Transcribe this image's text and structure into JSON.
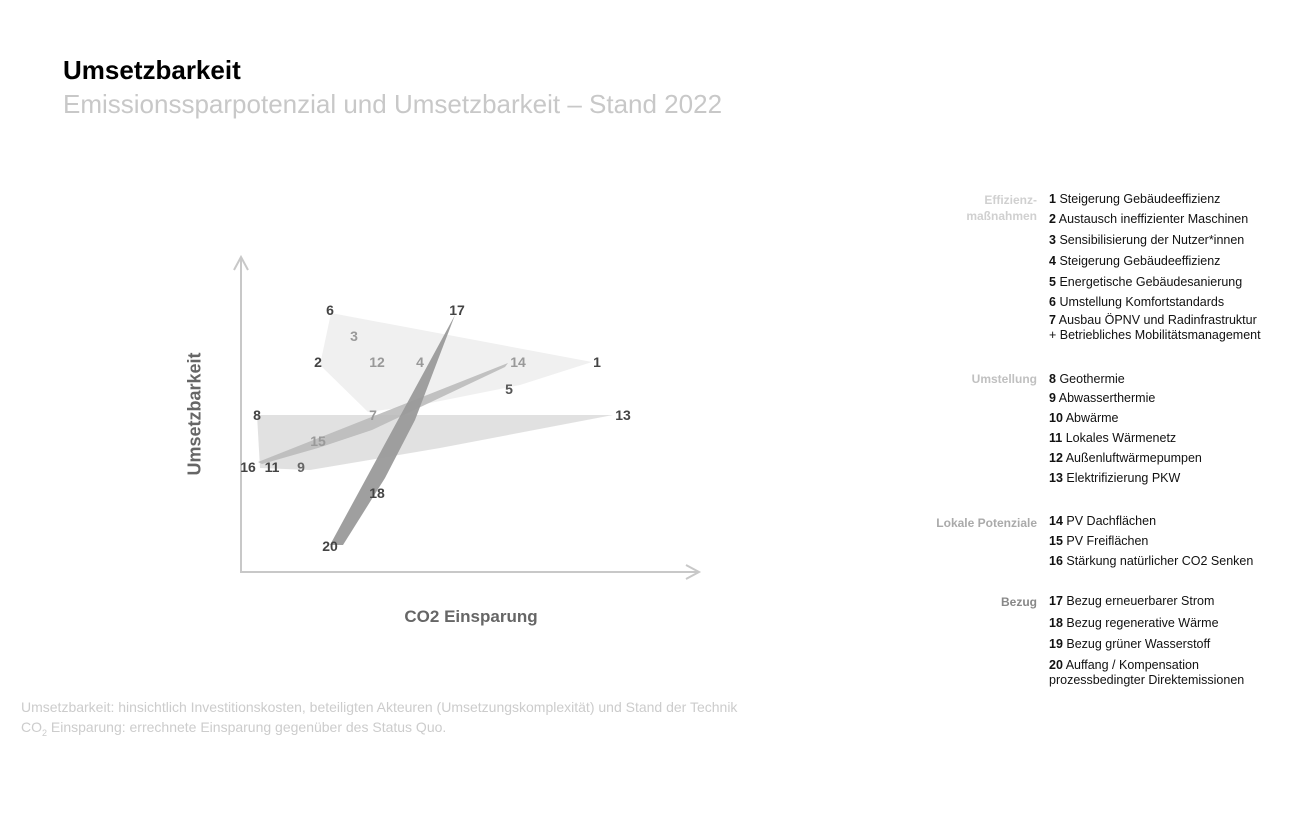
{
  "header": {
    "title": "Umsetzbarkeit",
    "subtitle": "Emissionssparpotenzial und Umsetzbarkeit – Stand 2022"
  },
  "diagram": {
    "y_axis_label": "Umsetzbarkeit",
    "x_axis_label": "CO2 Einsparung",
    "points": {
      "p1": "1",
      "p2": "2",
      "p3": "3",
      "p4": "4",
      "p5": "5",
      "p6": "6",
      "p7": "7",
      "p8": "8",
      "p9": "9",
      "p11": "11",
      "p12": "12",
      "p13": "13",
      "p14": "14",
      "p15": "15",
      "p16": "16",
      "p17": "17",
      "p18": "18",
      "p20": "20"
    },
    "colors": {
      "effizienz": "#f0f0f0",
      "umstellung": "#e0e0e0",
      "lokal": "#c4c4c4",
      "bezug": "#9a9a9a"
    }
  },
  "legend": {
    "groups": [
      "Effizienz-\nmaßnahmen",
      "Umstellung",
      "Lokale Potenziale",
      "Bezug"
    ],
    "items": [
      {
        "n": "1",
        "t": "Steigerung Gebäudeeffizienz"
      },
      {
        "n": "2",
        "t": "Austausch ineffizienter Maschinen"
      },
      {
        "n": "3",
        "t": "Sensibilisierung der Nutzer*innen"
      },
      {
        "n": "4",
        "t": "Steigerung Gebäudeeffizienz"
      },
      {
        "n": "5",
        "t": "Energetische Gebäudesanierung"
      },
      {
        "n": "6",
        "t": "Umstellung Komfortstandards"
      },
      {
        "n": "7",
        "t": "Ausbau ÖPNV und Radinfrastruktur",
        "t2": "+ Betriebliches Mobilitätsmanagement"
      },
      {
        "n": "8",
        "t": "Geothermie"
      },
      {
        "n": "9",
        "t": "Abwasserthermie"
      },
      {
        "n": "10",
        "t": "Abwärme"
      },
      {
        "n": "11",
        "t": "Lokales Wärmenetz"
      },
      {
        "n": "12",
        "t": "Außenluftwärmepumpen"
      },
      {
        "n": "13",
        "t": "Elektrifizierung PKW"
      },
      {
        "n": "14",
        "t": "PV Dachflächen"
      },
      {
        "n": "15",
        "t": "PV Freiflächen"
      },
      {
        "n": "16",
        "t": "Stärkung natürlicher CO2 Senken"
      },
      {
        "n": "17",
        "t": "Bezug erneuerbarer Strom"
      },
      {
        "n": "18",
        "t": "Bezug regenerative Wärme"
      },
      {
        "n": "19",
        "t": "Bezug grüner Wasserstoff"
      },
      {
        "n": "20",
        "t": "Auffang / Kompensation",
        "t2": "prozessbedingter Direktemissionen"
      }
    ]
  },
  "footnotes": {
    "line1": "Umsetzbarkeit: hinsichtlich Investitionskosten, beteiligten Akteuren (Umsetzungskomplexität) und Stand der Technik",
    "line2_pre": "CO",
    "line2_sub": "2",
    "line2_post": " Einsparung: errechnete Einsparung gegenüber des Status Quo."
  }
}
